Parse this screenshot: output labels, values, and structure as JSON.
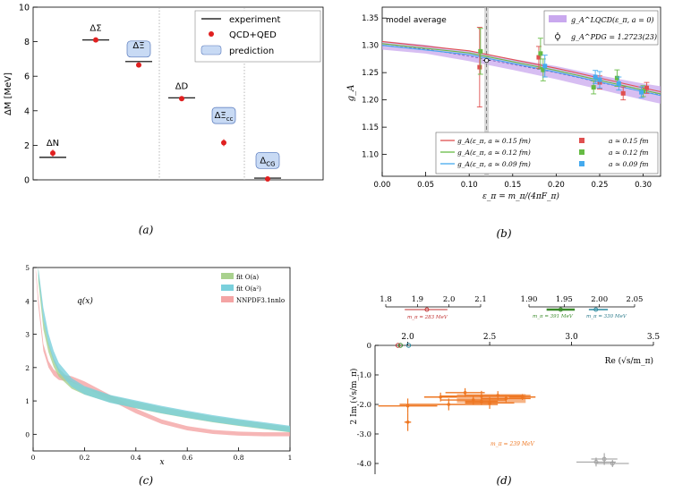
{
  "panel_labels": {
    "a": "(a)",
    "b": "(b)",
    "c": "(c)",
    "d": "(d)"
  },
  "colors": {
    "experiment": "#000000",
    "qcd": "#e02020",
    "prediction": "#c8daf4",
    "red": "#e05050",
    "green": "#66bb44",
    "blue": "#44aaee",
    "purple": "#c9a8ee",
    "orange": "#ee7722",
    "pink": "#f4a4a4",
    "teal": "#7ad0dc",
    "lime": "#a9d18e"
  },
  "chart_data": [
    {
      "id": "a",
      "type": "scatter",
      "title": "",
      "ylabel": "ΔM [MeV]",
      "xlabel": "",
      "ylim": [
        0,
        10
      ],
      "yticks": [
        0,
        2,
        4,
        6,
        8,
        10
      ],
      "legend": {
        "placement": "top-right",
        "entries": [
          "experiment",
          "QCD+QED",
          "prediction"
        ]
      },
      "groups": [
        {
          "label": "ΔN",
          "experiment": 1.3,
          "value": 1.55,
          "err": 0.2,
          "predicted": false
        },
        {
          "label": "ΔΣ",
          "experiment": 8.1,
          "value": 8.1,
          "err": 0.1,
          "predicted": false
        },
        {
          "label": "ΔΞ",
          "experiment": 6.85,
          "value": 6.65,
          "err": 0.1,
          "predicted": true
        },
        {
          "label": "ΔD",
          "experiment": 4.75,
          "value": 4.7,
          "err": 0.1,
          "predicted": false
        },
        {
          "label": "ΔΞcc",
          "experiment": null,
          "value": 2.15,
          "err": 0.2,
          "predicted": true
        },
        {
          "label": "ΔCG",
          "experiment": 0.1,
          "value": 0.05,
          "err": 0.1,
          "predicted": true
        }
      ]
    },
    {
      "id": "b",
      "type": "line",
      "xlabel": "ε_π = m_π/(4πF_π)",
      "ylabel": "g_A",
      "xlim": [
        0,
        0.32
      ],
      "ylim": [
        1.06,
        1.37
      ],
      "xticks": [
        0,
        0.05,
        0.1,
        0.15,
        0.2,
        0.25,
        0.3
      ],
      "yticks": [
        1.1,
        1.15,
        1.2,
        1.25,
        1.3,
        1.35
      ],
      "annotation": "model average",
      "legend_top": [
        {
          "label": "g_A^LQCD(ε_π, a = 0)"
        },
        {
          "label": "g_A^PDG = 1.2723(23)"
        }
      ],
      "pdg": {
        "x": 0.12,
        "y": 1.2723,
        "err": 0.0023
      },
      "band": {
        "x": [
          0,
          0.05,
          0.1,
          0.15,
          0.2,
          0.25,
          0.3,
          0.32
        ],
        "center": [
          1.3,
          1.293,
          1.28,
          1.265,
          1.25,
          1.232,
          1.215,
          1.209
        ],
        "half_width": [
          0.008,
          0.008,
          0.009,
          0.01,
          0.012,
          0.013,
          0.015,
          0.016
        ]
      },
      "series": [
        {
          "name": "g_A(ε_π, a ≃ 0.15 fm)",
          "x": [
            0,
            0.1,
            0.2,
            0.3,
            0.32
          ],
          "values": [
            1.307,
            1.29,
            1.258,
            1.222,
            1.215
          ]
        },
        {
          "name": "g_A(ε_π, a ≃ 0.12 fm)",
          "x": [
            0,
            0.1,
            0.2,
            0.3,
            0.32
          ],
          "values": [
            1.303,
            1.286,
            1.254,
            1.218,
            1.211
          ]
        },
        {
          "name": "g_A(ε_π, a ≃ 0.09 fm)",
          "x": [
            0,
            0.1,
            0.2,
            0.3,
            0.32
          ],
          "values": [
            1.3,
            1.283,
            1.251,
            1.215,
            1.208
          ]
        }
      ],
      "points": [
        {
          "set": "a ≃ 0.15 fm",
          "x": 0.112,
          "y": 1.26,
          "err": 0.073
        },
        {
          "set": "a ≃ 0.15 fm",
          "x": 0.18,
          "y": 1.278,
          "err": 0.02
        },
        {
          "set": "a ≃ 0.15 fm",
          "x": 0.25,
          "y": 1.232,
          "err": 0.012
        },
        {
          "set": "a ≃ 0.15 fm",
          "x": 0.277,
          "y": 1.212,
          "err": 0.012
        },
        {
          "set": "a ≃ 0.15 fm",
          "x": 0.304,
          "y": 1.222,
          "err": 0.01
        },
        {
          "set": "a ≃ 0.12 fm",
          "x": 0.113,
          "y": 1.289,
          "err": 0.042
        },
        {
          "set": "a ≃ 0.12 fm",
          "x": 0.182,
          "y": 1.285,
          "err": 0.028
        },
        {
          "set": "a ≃ 0.12 fm",
          "x": 0.185,
          "y": 1.255,
          "err": 0.02
        },
        {
          "set": "a ≃ 0.12 fm",
          "x": 0.243,
          "y": 1.223,
          "err": 0.012
        },
        {
          "set": "a ≃ 0.12 fm",
          "x": 0.27,
          "y": 1.24,
          "err": 0.015
        },
        {
          "set": "a ≃ 0.12 fm",
          "x": 0.3,
          "y": 1.216,
          "err": 0.01
        },
        {
          "set": "a ≃ 0.09 fm",
          "x": 0.187,
          "y": 1.262,
          "err": 0.02
        },
        {
          "set": "a ≃ 0.09 fm",
          "x": 0.245,
          "y": 1.242,
          "err": 0.012
        },
        {
          "set": "a ≃ 0.09 fm",
          "x": 0.25,
          "y": 1.237,
          "err": 0.015
        },
        {
          "set": "a ≃ 0.09 fm",
          "x": 0.272,
          "y": 1.23,
          "err": 0.012
        },
        {
          "set": "a ≃ 0.09 fm",
          "x": 0.298,
          "y": 1.214,
          "err": 0.01
        }
      ],
      "legend": [
        "g_A(ε_π, a ≃ 0.15 fm)",
        "g_A(ε_π, a ≃ 0.12 fm)",
        "g_A(ε_π, a ≃ 0.09 fm)",
        "a ≃ 0.15 fm",
        "a ≃ 0.12 fm",
        "a ≃ 0.09 fm"
      ]
    },
    {
      "id": "c",
      "type": "area",
      "title": "q(x)",
      "xlabel": "x",
      "ylabel": "",
      "xlim": [
        0,
        1
      ],
      "ylim": [
        -0.5,
        5
      ],
      "xticks": [
        0,
        0.2,
        0.4,
        0.6,
        0.8,
        1
      ],
      "xticklabels": [
        "0",
        "0.2",
        "0.4",
        "0.6",
        "0.8",
        "1"
      ],
      "yticks": [
        0,
        1,
        2,
        3,
        4,
        5
      ],
      "legend": [
        "fit O(a)",
        "fit O(a²)",
        "NNPDF3.1nnlo"
      ],
      "series": [
        {
          "name": "fit O(a)",
          "x": [
            0.02,
            0.04,
            0.06,
            0.08,
            0.1,
            0.15,
            0.2,
            0.3,
            0.4,
            0.5,
            0.6,
            0.7,
            0.8,
            0.9,
            1.0
          ],
          "values": [
            4.8,
            3.3,
            2.6,
            2.15,
            1.85,
            1.48,
            1.3,
            1.06,
            0.88,
            0.72,
            0.58,
            0.45,
            0.34,
            0.24,
            0.14
          ],
          "width": 0.08
        },
        {
          "name": "fit O(a²)",
          "x": [
            0.02,
            0.04,
            0.06,
            0.08,
            0.1,
            0.15,
            0.2,
            0.3,
            0.4,
            0.5,
            0.6,
            0.7,
            0.8,
            0.9,
            1.0
          ],
          "values": [
            5.0,
            3.6,
            2.85,
            2.35,
            2.0,
            1.55,
            1.32,
            1.06,
            0.9,
            0.74,
            0.6,
            0.47,
            0.36,
            0.26,
            0.16
          ],
          "width": 0.09
        },
        {
          "name": "NNPDF3.1nnlo",
          "x": [
            0.01,
            0.02,
            0.04,
            0.06,
            0.08,
            0.1,
            0.15,
            0.2,
            0.3,
            0.4,
            0.5,
            0.6,
            0.7,
            0.8,
            0.9,
            1.0
          ],
          "values": [
            5.0,
            4.0,
            2.6,
            2.1,
            1.85,
            1.72,
            1.65,
            1.5,
            1.1,
            0.7,
            0.38,
            0.18,
            0.07,
            0.02,
            0.0,
            0.0
          ],
          "width": 0.06
        }
      ]
    },
    {
      "id": "d",
      "type": "scatter",
      "xlabel": "Re (√s/m_π)",
      "ylabel": "2 Im (√s/m_π)",
      "xlim": [
        1.8,
        3.5
      ],
      "ylim": [
        -4.5,
        0.2
      ],
      "xticks": [
        2.0,
        2.5,
        3.0,
        3.5
      ],
      "xticklabels": [
        "2.0",
        "2.5",
        "3.0",
        "3.5"
      ],
      "yticks": [
        0,
        -1,
        -2,
        -3,
        -4
      ],
      "yticklabels": [
        "0",
        "-1.0",
        "-2.0",
        "-3.0",
        "-4.0"
      ],
      "inset1": {
        "xlim": [
          1.8,
          2.1
        ],
        "ticks": [
          1.8,
          1.9,
          2.0,
          2.1
        ],
        "ticklabels": [
          "1.8",
          "1.9",
          "2.0",
          "2.1"
        ],
        "label": "m_π = 283 MeV",
        "center": 1.93,
        "lo": 1.86,
        "hi": 1.995
      },
      "inset2": {
        "xlim": [
          1.9,
          2.05
        ],
        "ticks": [
          1.9,
          1.95,
          2.0,
          2.05
        ],
        "ticklabels": [
          "1.90",
          "1.95",
          "2.00",
          "2.05"
        ],
        "labels": [
          "m_π = 391 MeV",
          "m_π = 330 MeV"
        ],
        "green": {
          "center": 1.945,
          "lo": 1.925,
          "hi": 1.965
        },
        "teal": {
          "center": 1.995,
          "lo": 1.985,
          "hi": 2.012
        }
      },
      "main_label": "m_π = 239 MeV",
      "orange_points": [
        {
          "x": 2.0,
          "y": -2.05,
          "ex": 0.18,
          "ey": 0.25
        },
        {
          "x": 2.25,
          "y": -2.0,
          "ex": 0.3,
          "ey": 0.2
        },
        {
          "x": 2.4,
          "y": -1.85,
          "ex": 0.2,
          "ey": 0.15
        },
        {
          "x": 2.45,
          "y": -1.72,
          "ex": 0.25,
          "ey": 0.18
        },
        {
          "x": 2.55,
          "y": -1.7,
          "ex": 0.2,
          "ey": 0.15
        },
        {
          "x": 2.5,
          "y": -1.95,
          "ex": 0.15,
          "ey": 0.2
        },
        {
          "x": 2.6,
          "y": -1.8,
          "ex": 0.15,
          "ey": 0.12
        },
        {
          "x": 2.35,
          "y": -1.6,
          "ex": 0.12,
          "ey": 0.15
        },
        {
          "x": 2.7,
          "y": -1.75,
          "ex": 0.08,
          "ey": 0.1
        },
        {
          "x": 2.45,
          "y": -1.9,
          "ex": 0.1,
          "ey": 0.12
        },
        {
          "x": 2.2,
          "y": -1.75,
          "ex": 0.1,
          "ey": 0.15
        },
        {
          "x": 2.0,
          "y": -2.6,
          "ex": 0.02,
          "ey": 0.3
        }
      ],
      "gray_points": [
        {
          "x": 3.15,
          "y": -3.95,
          "ex": 0.12,
          "ey": 0.15
        },
        {
          "x": 3.2,
          "y": -3.85,
          "ex": 0.08,
          "ey": 0.2
        },
        {
          "x": 3.25,
          "y": -4.0,
          "ex": 0.1,
          "ey": 0.12
        }
      ],
      "axis_points": [
        {
          "x": 1.94,
          "color": "red"
        },
        {
          "x": 1.955,
          "color": "green"
        },
        {
          "x": 2.005,
          "color": "teal"
        }
      ]
    }
  ],
  "texts": {
    "a_labels": [
      "ΔN",
      "ΔΣ",
      "ΔΞ",
      "ΔD",
      "ΔΞcc",
      "ΔCG"
    ],
    "legend_a": [
      "experiment",
      "QCD+QED",
      "prediction"
    ]
  }
}
